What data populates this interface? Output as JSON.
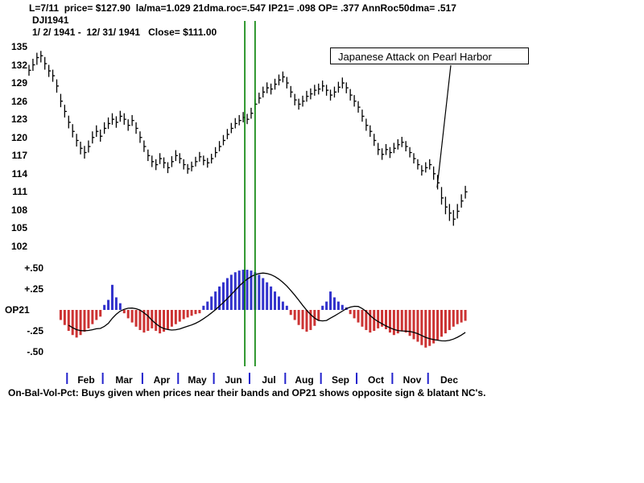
{
  "header": {
    "stats_line": "L=7/11  price= $127.90  la/ma=1.029 21dma.roc=.547 IP21= .098 OP= .377 AnnRoc50dma= .517",
    "symbol": "DJI1941",
    "range_line": "1/ 2/ 1941 -  12/ 31/ 1941   Close= $111.00"
  },
  "annotation": {
    "text": "Japanese Attack on Pearl Harbor"
  },
  "footer": {
    "caption": "On-Bal-Vol-Pct: Buys given when prices near their bands and OP21 shows opposite sign & blatant NC's."
  },
  "colors": {
    "price_bar": "#000000",
    "osc_positive": "#3333cc",
    "osc_negative": "#cc3333",
    "event_line": "#008000",
    "ma_line": "#000000",
    "month_tick": "#2222cc",
    "annotation_line": "#000000"
  },
  "chart_data": [
    {
      "type": "bar",
      "subtype": "ohlc-hilo-close",
      "title": "DJI1941",
      "ylabel": "",
      "ylim": [
        102,
        135
      ],
      "yticks": [
        135,
        132,
        129,
        126,
        123,
        120,
        117,
        114,
        111,
        108,
        105,
        102
      ],
      "grid": false,
      "month_labels": [
        "Feb",
        "Mar",
        "Apr",
        "May",
        "Jun",
        "Jul",
        "Aug",
        "Sep",
        "Oct",
        "Nov",
        "Dec"
      ],
      "month_start_index": [
        10,
        19,
        29,
        38,
        47,
        56,
        65,
        74,
        83,
        92,
        101
      ],
      "event_line_index": [
        54.4,
        57.0
      ],
      "bars": [
        [
          132.0,
          130.2,
          131.1
        ],
        [
          133.0,
          131.0,
          132.0
        ],
        [
          134.0,
          132.0,
          133.2
        ],
        [
          134.3,
          132.4,
          133.5
        ],
        [
          133.3,
          131.2,
          132.2
        ],
        [
          132.0,
          130.0,
          131.0
        ],
        [
          131.2,
          129.2,
          130.2
        ],
        [
          129.6,
          127.4,
          128.5
        ],
        [
          127.2,
          125.0,
          126.0
        ],
        [
          125.4,
          123.3,
          124.3
        ],
        [
          123.6,
          121.5,
          122.5
        ],
        [
          122.2,
          120.0,
          121.0
        ],
        [
          120.6,
          118.5,
          119.5
        ],
        [
          119.3,
          117.2,
          118.2
        ],
        [
          118.6,
          116.5,
          117.5
        ],
        [
          119.5,
          117.5,
          118.5
        ],
        [
          121.0,
          119.0,
          120.0
        ],
        [
          122.0,
          120.1,
          121.0
        ],
        [
          121.3,
          119.3,
          120.2
        ],
        [
          122.5,
          120.6,
          121.5
        ],
        [
          123.3,
          121.4,
          122.3
        ],
        [
          124.0,
          122.1,
          123.0
        ],
        [
          123.5,
          121.6,
          122.5
        ],
        [
          124.4,
          122.6,
          123.5
        ],
        [
          124.0,
          122.1,
          123.0
        ],
        [
          123.0,
          121.1,
          122.0
        ],
        [
          123.7,
          121.9,
          122.8
        ],
        [
          122.5,
          120.6,
          121.5
        ],
        [
          121.0,
          119.1,
          120.0
        ],
        [
          119.5,
          117.6,
          118.5
        ],
        [
          118.0,
          116.1,
          117.0
        ],
        [
          117.0,
          115.1,
          116.0
        ],
        [
          116.4,
          114.6,
          115.5
        ],
        [
          117.4,
          115.6,
          116.5
        ],
        [
          116.7,
          114.9,
          115.8
        ],
        [
          115.9,
          114.1,
          115.0
        ],
        [
          116.9,
          115.1,
          116.0
        ],
        [
          117.9,
          116.1,
          117.0
        ],
        [
          117.4,
          115.7,
          116.5
        ],
        [
          116.4,
          114.7,
          115.5
        ],
        [
          115.6,
          114.0,
          114.8
        ],
        [
          116.0,
          114.4,
          115.2
        ],
        [
          116.8,
          115.2,
          116.0
        ],
        [
          117.6,
          116.0,
          116.8
        ],
        [
          117.0,
          115.4,
          116.2
        ],
        [
          116.6,
          115.0,
          115.8
        ],
        [
          117.3,
          115.7,
          116.5
        ],
        [
          118.4,
          116.7,
          117.5
        ],
        [
          119.4,
          117.7,
          118.5
        ],
        [
          120.4,
          118.7,
          119.5
        ],
        [
          121.4,
          119.7,
          120.5
        ],
        [
          122.4,
          120.7,
          121.5
        ],
        [
          123.2,
          121.5,
          122.3
        ],
        [
          123.7,
          122.0,
          122.8
        ],
        [
          124.2,
          122.5,
          123.3
        ],
        [
          123.9,
          122.2,
          123.0
        ],
        [
          124.9,
          123.1,
          124.0
        ],
        [
          126.4,
          124.6,
          125.5
        ],
        [
          127.4,
          125.6,
          126.5
        ],
        [
          128.4,
          126.6,
          127.5
        ],
        [
          129.1,
          127.3,
          128.2
        ],
        [
          128.9,
          127.1,
          128.0
        ],
        [
          129.7,
          127.9,
          128.8
        ],
        [
          130.4,
          128.6,
          129.5
        ],
        [
          130.9,
          129.1,
          130.0
        ],
        [
          130.0,
          128.1,
          129.0
        ],
        [
          128.5,
          126.6,
          127.5
        ],
        [
          127.2,
          125.3,
          126.2
        ],
        [
          126.4,
          124.6,
          125.5
        ],
        [
          126.9,
          125.1,
          126.0
        ],
        [
          127.7,
          125.9,
          126.8
        ],
        [
          128.1,
          126.3,
          127.2
        ],
        [
          128.7,
          126.9,
          127.8
        ],
        [
          128.9,
          127.1,
          128.0
        ],
        [
          129.4,
          127.6,
          128.5
        ],
        [
          128.7,
          126.9,
          127.8
        ],
        [
          127.9,
          126.1,
          127.0
        ],
        [
          128.4,
          126.6,
          127.5
        ],
        [
          129.2,
          127.4,
          128.3
        ],
        [
          129.9,
          128.1,
          129.0
        ],
        [
          129.1,
          127.3,
          128.2
        ],
        [
          128.0,
          126.1,
          127.0
        ],
        [
          127.0,
          125.1,
          126.0
        ],
        [
          126.0,
          124.1,
          125.0
        ],
        [
          124.6,
          122.6,
          123.5
        ],
        [
          123.1,
          121.1,
          122.0
        ],
        [
          122.0,
          120.1,
          121.0
        ],
        [
          120.6,
          118.6,
          119.5
        ],
        [
          119.1,
          117.1,
          118.0
        ],
        [
          118.2,
          116.3,
          117.2
        ],
        [
          118.9,
          117.1,
          118.0
        ],
        [
          118.4,
          116.6,
          117.5
        ],
        [
          119.1,
          117.4,
          118.2
        ],
        [
          119.7,
          118.0,
          118.8
        ],
        [
          120.1,
          118.4,
          119.2
        ],
        [
          119.4,
          117.7,
          118.5
        ],
        [
          118.4,
          116.7,
          117.5
        ],
        [
          117.4,
          115.7,
          116.5
        ],
        [
          116.4,
          114.7,
          115.5
        ],
        [
          115.4,
          113.7,
          114.5
        ],
        [
          115.9,
          114.2,
          115.0
        ],
        [
          116.4,
          114.7,
          115.5
        ],
        [
          115.2,
          113.0,
          114.0
        ],
        [
          113.8,
          111.4,
          112.5
        ],
        [
          111.8,
          108.9,
          110.0
        ],
        [
          110.2,
          107.3,
          108.5
        ],
        [
          109.0,
          106.2,
          107.5
        ],
        [
          108.0,
          105.4,
          106.5
        ],
        [
          109.0,
          106.6,
          107.8
        ],
        [
          110.6,
          108.4,
          109.5
        ],
        [
          112.0,
          109.9,
          111.0
        ]
      ]
    },
    {
      "type": "bar",
      "name": "OP21",
      "ylim": [
        -0.5,
        0.5
      ],
      "ytick_labels": [
        "+.50",
        "+.25",
        "OP21",
        "-.25",
        "-.50"
      ],
      "ytick_values": [
        0.5,
        0.25,
        0,
        -0.25,
        -0.5
      ],
      "ma": {
        "window": 10,
        "kind": "trailing"
      },
      "values": [
        null,
        null,
        null,
        null,
        null,
        null,
        null,
        null,
        -0.12,
        -0.18,
        -0.25,
        -0.3,
        -0.33,
        -0.3,
        -0.26,
        -0.22,
        -0.17,
        -0.12,
        -0.08,
        0.06,
        0.12,
        0.3,
        0.15,
        0.08,
        -0.04,
        -0.1,
        -0.15,
        -0.2,
        -0.24,
        -0.27,
        -0.25,
        -0.22,
        -0.25,
        -0.28,
        -0.26,
        -0.23,
        -0.2,
        -0.17,
        -0.14,
        -0.11,
        -0.09,
        -0.07,
        -0.05,
        -0.04,
        0.05,
        0.1,
        0.16,
        0.22,
        0.28,
        0.33,
        0.38,
        0.42,
        0.45,
        0.47,
        0.48,
        0.48,
        0.47,
        0.45,
        0.42,
        0.38,
        0.33,
        0.28,
        0.22,
        0.16,
        0.1,
        0.05,
        -0.06,
        -0.12,
        -0.18,
        -0.23,
        -0.26,
        -0.24,
        -0.19,
        -0.13,
        0.05,
        0.1,
        0.22,
        0.15,
        0.1,
        0.06,
        0.03,
        -0.05,
        -0.1,
        -0.15,
        -0.2,
        -0.24,
        -0.27,
        -0.25,
        -0.22,
        -0.2,
        -0.23,
        -0.27,
        -0.3,
        -0.28,
        -0.25,
        -0.27,
        -0.31,
        -0.35,
        -0.38,
        -0.42,
        -0.45,
        -0.43,
        -0.4,
        -0.36,
        -0.32,
        -0.28,
        -0.24,
        -0.2,
        -0.17,
        -0.15,
        -0.13
      ]
    }
  ]
}
